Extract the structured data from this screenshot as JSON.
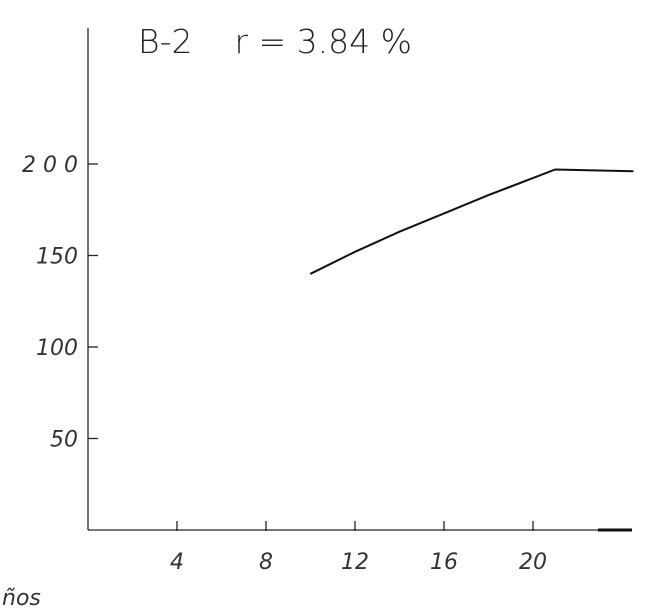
{
  "chart_data": {
    "type": "line",
    "title": "B-2    r = 3.84 %",
    "xlabel": "ños",
    "ylabel": "",
    "xlim": [
      0,
      24.5
    ],
    "ylim": [
      0,
      200
    ],
    "x_ticks": [
      {
        "value": 4,
        "label": "4"
      },
      {
        "value": 8,
        "label": "8"
      },
      {
        "value": 12,
        "label": "12"
      },
      {
        "value": 16,
        "label": "16"
      },
      {
        "value": 20,
        "label": "20"
      }
    ],
    "y_ticks": [
      {
        "value": 50,
        "label": "50"
      },
      {
        "value": 100,
        "label": "100"
      },
      {
        "value": 150,
        "label": "150"
      },
      {
        "value": 200,
        "label": "2 0 0"
      }
    ],
    "series": [
      {
        "x": [
          10,
          12,
          14,
          16,
          18,
          21,
          24.5
        ],
        "y": [
          140,
          152,
          163,
          173,
          183,
          197,
          196
        ]
      }
    ],
    "grid": false,
    "legend": "none"
  }
}
